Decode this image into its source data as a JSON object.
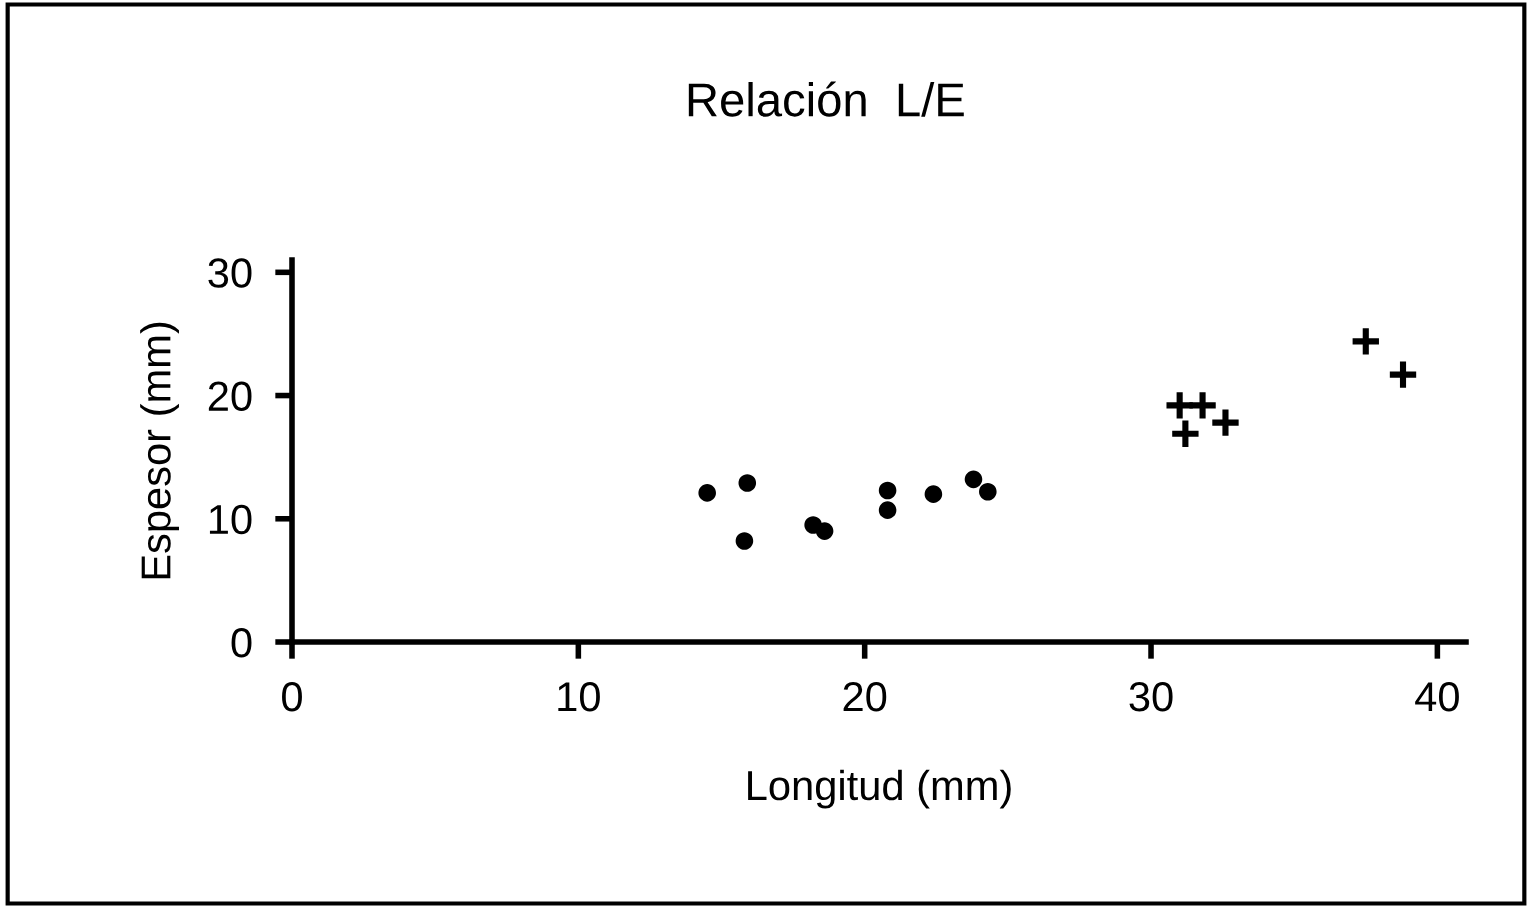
{
  "chart_data": {
    "type": "scatter",
    "title": "Relación  L/E",
    "xlabel": "Longitud (mm)",
    "ylabel": "Espesor (mm)",
    "xlim": [
      0,
      41
    ],
    "xticks": [
      0,
      10,
      20,
      30,
      40
    ],
    "ylim": [
      0,
      31
    ],
    "yticks": [
      0,
      10,
      20,
      30
    ],
    "grid": false,
    "legend": false,
    "series": [
      {
        "color": "#000000",
        "marker": "circle",
        "x": [
          14.5,
          15.9,
          15.8,
          18.2,
          18.6,
          20.8,
          20.8,
          22.4,
          23.8,
          24.3
        ],
        "values": [
          12.1,
          12.9,
          8.2,
          9.5,
          9.0,
          12.3,
          10.7,
          12.0,
          13.2,
          12.2
        ]
      },
      {
        "color": "#000000",
        "marker": "cross",
        "x": [
          31.0,
          31.8,
          31.2,
          32.6,
          37.5,
          38.8
        ],
        "values": [
          19.2,
          19.2,
          16.9,
          17.8,
          24.4,
          21.7
        ]
      }
    ]
  }
}
